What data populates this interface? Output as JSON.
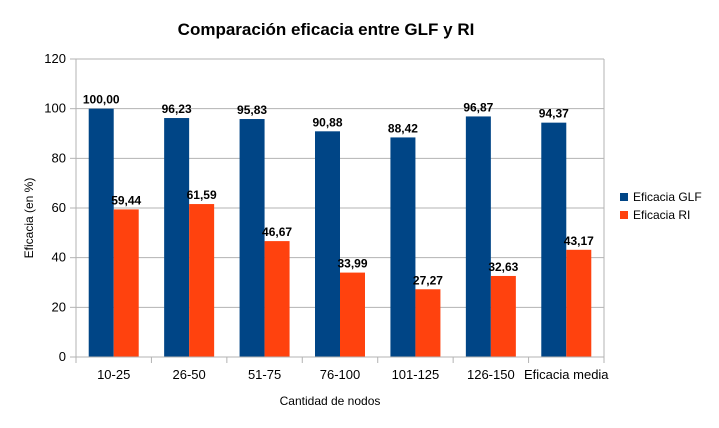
{
  "chart_data": {
    "type": "bar",
    "title": "Comparación eficacia entre GLF y RI",
    "xlabel": "Cantidad de nodos",
    "ylabel": "Eficacia (en %)",
    "categories": [
      "10-25",
      "26-50",
      "51-75",
      "76-100",
      "101-125",
      "126-150",
      "Eficacia media"
    ],
    "series": [
      {
        "name": "Eficacia GLF",
        "color": "#004586",
        "values": [
          100.0,
          96.23,
          95.83,
          90.88,
          88.42,
          96.87,
          94.37
        ],
        "labels": [
          "100,00",
          "96,23",
          "95,83",
          "90,88",
          "88,42",
          "96,87",
          "94,37"
        ]
      },
      {
        "name": "Eficacia RI",
        "color": "#ff420e",
        "values": [
          59.44,
          61.59,
          46.67,
          33.99,
          27.27,
          32.63,
          43.17
        ],
        "labels": [
          "59,44",
          "61,59",
          "46,67",
          "33,99",
          "27,27",
          "32,63",
          "43,17"
        ]
      }
    ],
    "ylim": [
      0,
      120
    ],
    "yticks": [
      "0",
      "20",
      "40",
      "60",
      "80",
      "100",
      "120"
    ],
    "grid": true,
    "legend_position": "right"
  }
}
